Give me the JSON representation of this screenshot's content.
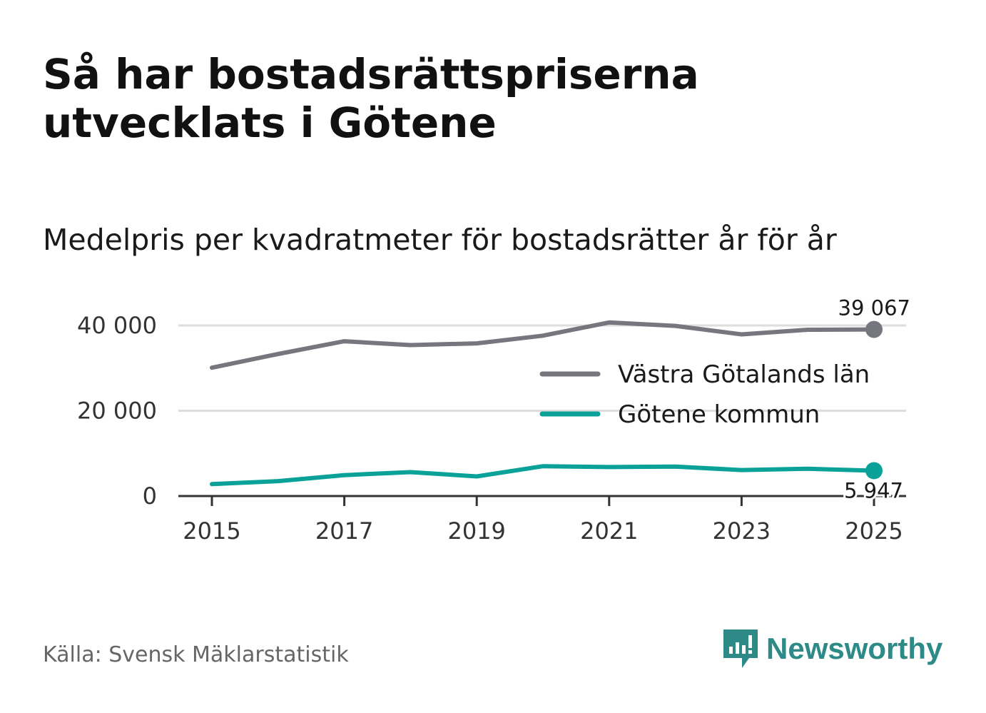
{
  "title": "Så har bostadsrättspriserna utvecklats i Götene",
  "subtitle": "Medelpris per kvadratmeter för bostadsrätter år för år",
  "source": "Källa: Svensk Mäklarstatistik",
  "brand": "Newsworthy",
  "colors": {
    "region": "#76767e",
    "kommun": "#0aa198",
    "brand": "#2e8a86"
  },
  "chart_data": {
    "type": "line",
    "title": "Så har bostadsrättspriserna utvecklats i Götene",
    "subtitle": "Medelpris per kvadratmeter för bostadsrätter år för år",
    "xlabel": "",
    "ylabel": "",
    "x": [
      2015,
      2016,
      2017,
      2018,
      2019,
      2020,
      2021,
      2022,
      2023,
      2024,
      2025
    ],
    "xticks": [
      "2015",
      "2017",
      "2019",
      "2021",
      "2023",
      "2025"
    ],
    "yticks": [
      {
        "value": 0,
        "label": "0"
      },
      {
        "value": 20000,
        "label": "20 000"
      },
      {
        "value": 40000,
        "label": "40 000"
      }
    ],
    "ylim": [
      0,
      40000
    ],
    "grid": true,
    "legend_position": "right",
    "series": [
      {
        "name": "Västra Götalands län",
        "color_key": "region",
        "values": [
          30100,
          33300,
          36300,
          35400,
          35800,
          37600,
          40700,
          39900,
          37900,
          39000,
          39067
        ],
        "end_label": "39 067"
      },
      {
        "name": "Götene kommun",
        "color_key": "kommun",
        "values": [
          2800,
          3500,
          4900,
          5600,
          4600,
          7000,
          6800,
          6900,
          6100,
          6400,
          5947
        ],
        "end_label": "5 947"
      }
    ]
  }
}
